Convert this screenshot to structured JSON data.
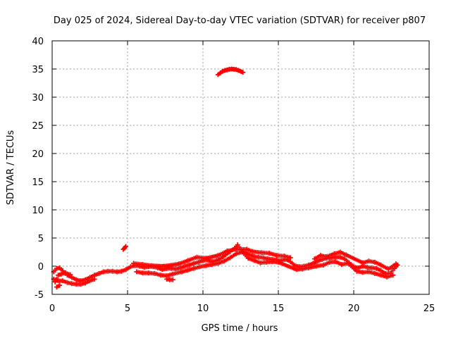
{
  "chart_data": {
    "type": "scatter",
    "title": "Day 025 of 2024, Sidereal Day-to-day VTEC variation (SDTVAR) for receiver p807",
    "xlabel": "GPS time / hours",
    "ylabel": "SDTVAR / TECUs",
    "xlim": [
      0,
      25
    ],
    "ylim": [
      -5,
      40
    ],
    "xticks": [
      0,
      5,
      10,
      15,
      20,
      25
    ],
    "yticks": [
      -5,
      0,
      5,
      10,
      15,
      20,
      25,
      30,
      35,
      40
    ],
    "grid": true,
    "marker": "+",
    "colors": {
      "series": "#ff0000",
      "grid": "#a0a0a0",
      "axis": "#000000"
    },
    "series": [
      {
        "name": "band-main",
        "points": [
          [
            0.1,
            -1.0
          ],
          [
            0.3,
            -0.4
          ],
          [
            0.5,
            -0.3
          ],
          [
            0.7,
            -0.8
          ],
          [
            1.0,
            -1.6
          ],
          [
            1.3,
            -2.0
          ],
          [
            1.6,
            -2.4
          ],
          [
            1.9,
            -2.6
          ],
          [
            2.2,
            -2.4
          ],
          [
            2.5,
            -2.0
          ],
          [
            2.8,
            -1.6
          ],
          [
            3.1,
            -1.3
          ],
          [
            3.4,
            -1.0
          ],
          [
            3.7,
            -0.9
          ],
          [
            4.0,
            -0.9
          ],
          [
            4.3,
            -1.0
          ],
          [
            4.6,
            -0.9
          ],
          [
            4.9,
            -0.6
          ],
          [
            5.2,
            -0.1
          ],
          [
            5.5,
            0.1
          ],
          [
            5.8,
            0.0
          ],
          [
            6.1,
            -0.2
          ],
          [
            6.4,
            -0.1
          ],
          [
            6.7,
            -0.1
          ],
          [
            7.0,
            -0.3
          ],
          [
            7.3,
            -0.6
          ],
          [
            7.6,
            -0.4
          ],
          [
            7.9,
            -0.4
          ],
          [
            8.2,
            -0.5
          ],
          [
            8.5,
            -0.3
          ],
          [
            8.8,
            0.0
          ],
          [
            9.1,
            0.2
          ],
          [
            9.4,
            0.5
          ],
          [
            9.7,
            0.7
          ],
          [
            10.0,
            1.0
          ],
          [
            10.3,
            1.1
          ],
          [
            10.6,
            0.8
          ],
          [
            10.9,
            1.0
          ],
          [
            11.2,
            1.4
          ],
          [
            11.5,
            2.0
          ],
          [
            11.8,
            2.6
          ],
          [
            12.1,
            3.2
          ],
          [
            12.3,
            3.8
          ],
          [
            12.5,
            3.0
          ],
          [
            12.8,
            2.4
          ],
          [
            13.1,
            2.0
          ],
          [
            13.4,
            1.7
          ],
          [
            13.7,
            1.6
          ],
          [
            14.0,
            1.5
          ],
          [
            14.3,
            1.3
          ],
          [
            14.6,
            1.2
          ],
          [
            14.9,
            1.1
          ],
          [
            15.2,
            1.0
          ],
          [
            15.5,
            1.2
          ],
          [
            15.8,
            0.8
          ],
          [
            16.1,
            0.1
          ],
          [
            16.4,
            -0.1
          ],
          [
            16.7,
            0.0
          ],
          [
            17.0,
            0.2
          ],
          [
            17.3,
            0.5
          ],
          [
            17.6,
            0.9
          ],
          [
            17.9,
            1.2
          ],
          [
            18.2,
            1.4
          ],
          [
            18.5,
            1.5
          ],
          [
            18.8,
            1.6
          ],
          [
            19.1,
            1.6
          ],
          [
            19.4,
            1.3
          ],
          [
            19.7,
            0.6
          ],
          [
            20.0,
            -0.1
          ],
          [
            20.3,
            -0.3
          ],
          [
            20.6,
            0.0
          ],
          [
            20.9,
            -0.2
          ],
          [
            21.2,
            -0.3
          ],
          [
            21.5,
            -0.4
          ],
          [
            21.8,
            -0.8
          ],
          [
            22.1,
            -1.3
          ],
          [
            22.4,
            -1.3
          ],
          [
            22.7,
            -0.4
          ],
          [
            22.9,
            0.2
          ]
        ]
      },
      {
        "name": "band-lower",
        "points": [
          [
            0.1,
            -2.3
          ],
          [
            0.4,
            -2.6
          ],
          [
            0.7,
            -2.6
          ],
          [
            1.0,
            -2.9
          ],
          [
            1.3,
            -3.1
          ],
          [
            1.6,
            -3.2
          ],
          [
            1.9,
            -3.2
          ],
          [
            2.2,
            -3.0
          ],
          [
            2.5,
            -2.6
          ],
          [
            2.8,
            -2.3
          ],
          [
            5.6,
            -1.0
          ],
          [
            6.0,
            -1.2
          ],
          [
            6.4,
            -1.2
          ],
          [
            6.8,
            -1.3
          ],
          [
            7.2,
            -1.6
          ],
          [
            7.6,
            -1.7
          ],
          [
            8.0,
            -1.4
          ],
          [
            8.6,
            -1.0
          ],
          [
            9.0,
            -0.7
          ],
          [
            9.4,
            -0.4
          ],
          [
            9.8,
            -0.1
          ],
          [
            10.2,
            0.1
          ],
          [
            10.6,
            0.3
          ],
          [
            11.0,
            0.5
          ],
          [
            11.4,
            0.9
          ],
          [
            11.8,
            1.5
          ],
          [
            12.2,
            2.2
          ],
          [
            12.6,
            2.5
          ],
          [
            13.0,
            1.4
          ],
          [
            13.4,
            1.0
          ],
          [
            13.8,
            0.6
          ],
          [
            14.2,
            0.7
          ],
          [
            14.6,
            0.8
          ],
          [
            15.0,
            0.7
          ],
          [
            16.2,
            -0.6
          ],
          [
            16.6,
            -0.5
          ],
          [
            17.0,
            -0.3
          ],
          [
            17.5,
            0.0
          ],
          [
            18.0,
            0.2
          ],
          [
            18.4,
            0.7
          ],
          [
            18.8,
            0.8
          ],
          [
            19.2,
            0.3
          ],
          [
            19.6,
            0.5
          ],
          [
            20.2,
            -0.9
          ],
          [
            20.6,
            -1.1
          ],
          [
            21.0,
            -1.0
          ],
          [
            21.4,
            -1.3
          ],
          [
            21.8,
            -1.6
          ],
          [
            22.2,
            -1.9
          ],
          [
            22.6,
            -1.6
          ]
        ]
      },
      {
        "name": "band-upper",
        "points": [
          [
            0.2,
            -2.8
          ],
          [
            0.4,
            -1.6
          ],
          [
            0.6,
            -1.4
          ],
          [
            0.9,
            -1.2
          ],
          [
            1.2,
            -1.5
          ],
          [
            5.4,
            0.5
          ],
          [
            6.0,
            0.3
          ],
          [
            6.6,
            0.1
          ],
          [
            7.4,
            0.0
          ],
          [
            8.4,
            0.4
          ],
          [
            9.0,
            1.0
          ],
          [
            9.6,
            1.6
          ],
          [
            10.2,
            1.4
          ],
          [
            11.0,
            1.9
          ],
          [
            11.6,
            2.7
          ],
          [
            12.2,
            3.0
          ],
          [
            12.9,
            3.0
          ],
          [
            13.3,
            2.6
          ],
          [
            13.9,
            2.4
          ],
          [
            14.4,
            2.3
          ],
          [
            14.9,
            1.9
          ],
          [
            15.4,
            1.8
          ],
          [
            15.8,
            1.5
          ],
          [
            17.4,
            1.3
          ],
          [
            17.8,
            1.9
          ],
          [
            18.2,
            1.7
          ],
          [
            18.7,
            2.2
          ],
          [
            19.1,
            2.5
          ],
          [
            19.5,
            2.0
          ],
          [
            20.6,
            0.6
          ],
          [
            21.0,
            0.9
          ],
          [
            21.4,
            0.7
          ],
          [
            21.8,
            0.2
          ],
          [
            22.3,
            -0.5
          ],
          [
            22.8,
            0.4
          ]
        ]
      },
      {
        "name": "isolated-segments",
        "points": [
          [
            4.72,
            3.0
          ],
          [
            4.8,
            3.2
          ],
          [
            4.88,
            3.5
          ],
          [
            0.3,
            -3.7
          ],
          [
            0.5,
            -3.4
          ],
          [
            7.6,
            -2.3
          ],
          [
            7.8,
            -2.4
          ],
          [
            8.0,
            -2.4
          ]
        ]
      },
      {
        "name": "arc-outlier",
        "points": [
          [
            11.0,
            34.0
          ],
          [
            11.15,
            34.3
          ],
          [
            11.3,
            34.6
          ],
          [
            11.45,
            34.75
          ],
          [
            11.6,
            34.85
          ],
          [
            11.75,
            34.95
          ],
          [
            11.9,
            35.0
          ],
          [
            12.05,
            34.95
          ],
          [
            12.2,
            34.9
          ],
          [
            12.35,
            34.75
          ],
          [
            12.5,
            34.6
          ],
          [
            12.65,
            34.4
          ]
        ]
      }
    ]
  }
}
